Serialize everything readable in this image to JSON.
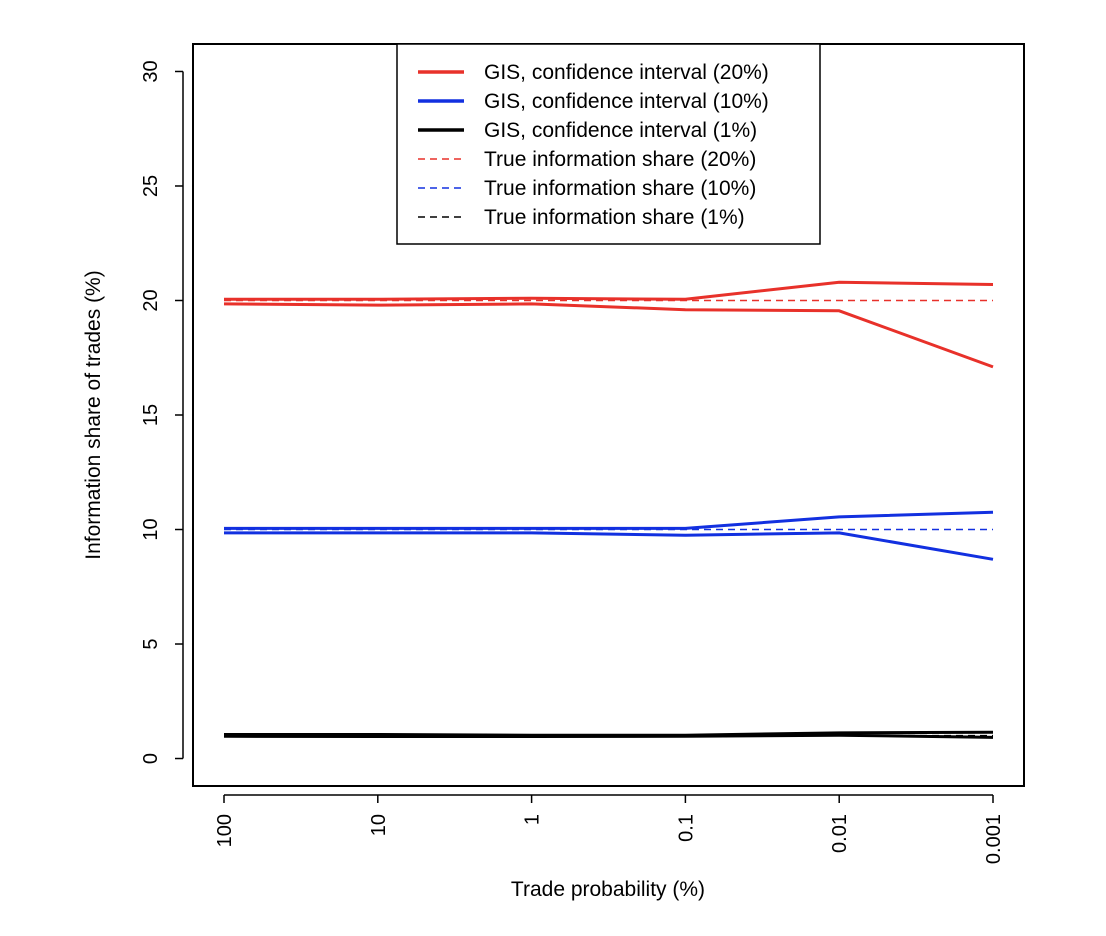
{
  "chart_data": {
    "type": "line",
    "title": "",
    "xlabel": "Trade probability (%)",
    "ylabel": "Information share of trades (%)",
    "categories": [
      "100",
      "10",
      "1",
      "0.1",
      "0.01",
      "0.001"
    ],
    "ylim": [
      -1.2,
      31.2
    ],
    "yticks": [
      0,
      5,
      10,
      15,
      20,
      25,
      30
    ],
    "grid": false,
    "legend_position": "top-center",
    "legend": [
      {
        "label": "GIS, confidence interval (20%)",
        "color": "#e8312a",
        "style": "solid"
      },
      {
        "label": "GIS, confidence interval (10%)",
        "color": "#1230e0",
        "style": "solid"
      },
      {
        "label": "GIS, confidence interval (1%)",
        "color": "#000000",
        "style": "solid"
      },
      {
        "label": "True information share (20%)",
        "color": "#e8312a",
        "style": "dashed"
      },
      {
        "label": "True information share (10%)",
        "color": "#1230e0",
        "style": "dashed"
      },
      {
        "label": "True information share (1%)",
        "color": "#000000",
        "style": "dashed"
      }
    ],
    "series": [
      {
        "name": "GIS 20% upper",
        "color": "#e8312a",
        "style": "solid",
        "values": [
          20.05,
          20.05,
          20.1,
          20.05,
          20.8,
          20.7
        ]
      },
      {
        "name": "GIS 20% lower",
        "color": "#e8312a",
        "style": "solid",
        "values": [
          19.85,
          19.8,
          19.85,
          19.6,
          19.55,
          17.1
        ]
      },
      {
        "name": "GIS 10% upper",
        "color": "#1230e0",
        "style": "solid",
        "values": [
          10.05,
          10.05,
          10.05,
          10.05,
          10.55,
          10.75
        ]
      },
      {
        "name": "GIS 10% lower",
        "color": "#1230e0",
        "style": "solid",
        "values": [
          9.85,
          9.85,
          9.85,
          9.75,
          9.85,
          8.7
        ]
      },
      {
        "name": "GIS 1% upper",
        "color": "#000000",
        "style": "solid",
        "values": [
          1.05,
          1.05,
          1.02,
          1.02,
          1.12,
          1.15
        ]
      },
      {
        "name": "GIS 1% lower",
        "color": "#000000",
        "style": "solid",
        "values": [
          0.97,
          0.96,
          0.96,
          0.97,
          1.02,
          0.92
        ]
      },
      {
        "name": "True 20%",
        "color": "#e8312a",
        "style": "dashed",
        "values": [
          20,
          20,
          20,
          20,
          20,
          20
        ]
      },
      {
        "name": "True 10%",
        "color": "#1230e0",
        "style": "dashed",
        "values": [
          10,
          10,
          10,
          10,
          10,
          10
        ]
      },
      {
        "name": "True 1%",
        "color": "#000000",
        "style": "dashed",
        "values": [
          1,
          1,
          1,
          1,
          1,
          1
        ]
      }
    ]
  }
}
